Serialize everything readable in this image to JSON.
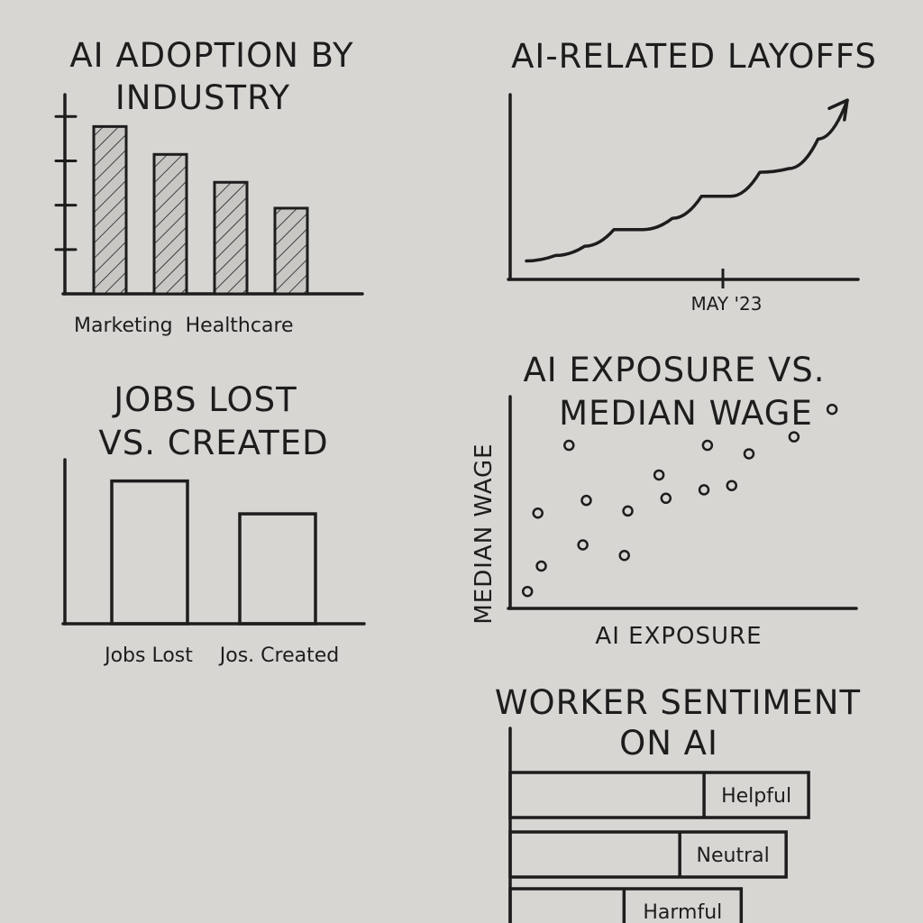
{
  "colors": {
    "background": "#d8d6d3",
    "ink": "#1d1d1d",
    "bar_fill": "#c9c7c4"
  },
  "chart_data": [
    {
      "type": "bar",
      "title_lines": [
        "AI ADOPTION BY",
        "INDUSTRY"
      ],
      "categories": [
        "Marketing",
        "",
        "",
        ""
      ],
      "category_label_text": "Marketing  Healthcare",
      "values": [
        0.84,
        0.7,
        0.56,
        0.43
      ],
      "ylim": [
        0,
        1
      ],
      "y_ticks": 4,
      "pattern": "hatched",
      "grid": false
    },
    {
      "type": "line",
      "title_lines": [
        "AI-RELATED LAYOFFS"
      ],
      "x_tick_label": "MAY '23",
      "values": [
        0.1,
        0.13,
        0.18,
        0.27,
        0.27,
        0.33,
        0.45,
        0.45,
        0.58,
        0.6,
        0.76,
        0.97
      ],
      "ylim": [
        0,
        1
      ],
      "arrow_head": true,
      "grid": false
    },
    {
      "type": "bar",
      "title_lines": [
        "JOBS LOST",
        "VS. CREATED"
      ],
      "categories": [
        "Jobs Lost",
        "Jos. Created"
      ],
      "values": [
        0.87,
        0.67
      ],
      "ylim": [
        0,
        1
      ],
      "pattern": "outline",
      "grid": false
    },
    {
      "type": "scatter",
      "title_lines": [
        "AI EXPOSURE VS.",
        "MEDIAN WAGE"
      ],
      "xlabel": "AI EXPOSURE",
      "ylabel": "MEDIAN WAGE",
      "points": [
        [
          0.05,
          0.08
        ],
        [
          0.09,
          0.2
        ],
        [
          0.08,
          0.45
        ],
        [
          0.17,
          0.77
        ],
        [
          0.21,
          0.3
        ],
        [
          0.22,
          0.51
        ],
        [
          0.33,
          0.25
        ],
        [
          0.34,
          0.46
        ],
        [
          0.43,
          0.63
        ],
        [
          0.45,
          0.52
        ],
        [
          0.56,
          0.56
        ],
        [
          0.57,
          0.77
        ],
        [
          0.64,
          0.58
        ],
        [
          0.69,
          0.73
        ],
        [
          0.82,
          0.81
        ],
        [
          0.93,
          0.94
        ]
      ],
      "xlim": [
        0,
        1
      ],
      "ylim": [
        0,
        1
      ],
      "grid": false
    },
    {
      "type": "bar",
      "orientation": "horizontal",
      "title_lines": [
        "WORKER SENTIMENT",
        "ON AI"
      ],
      "categories": [
        "Helpful",
        "Neutral",
        "Harmful"
      ],
      "values": [
        0.93,
        0.86,
        0.72
      ],
      "ylim": [
        0,
        1
      ],
      "grid": false
    }
  ]
}
